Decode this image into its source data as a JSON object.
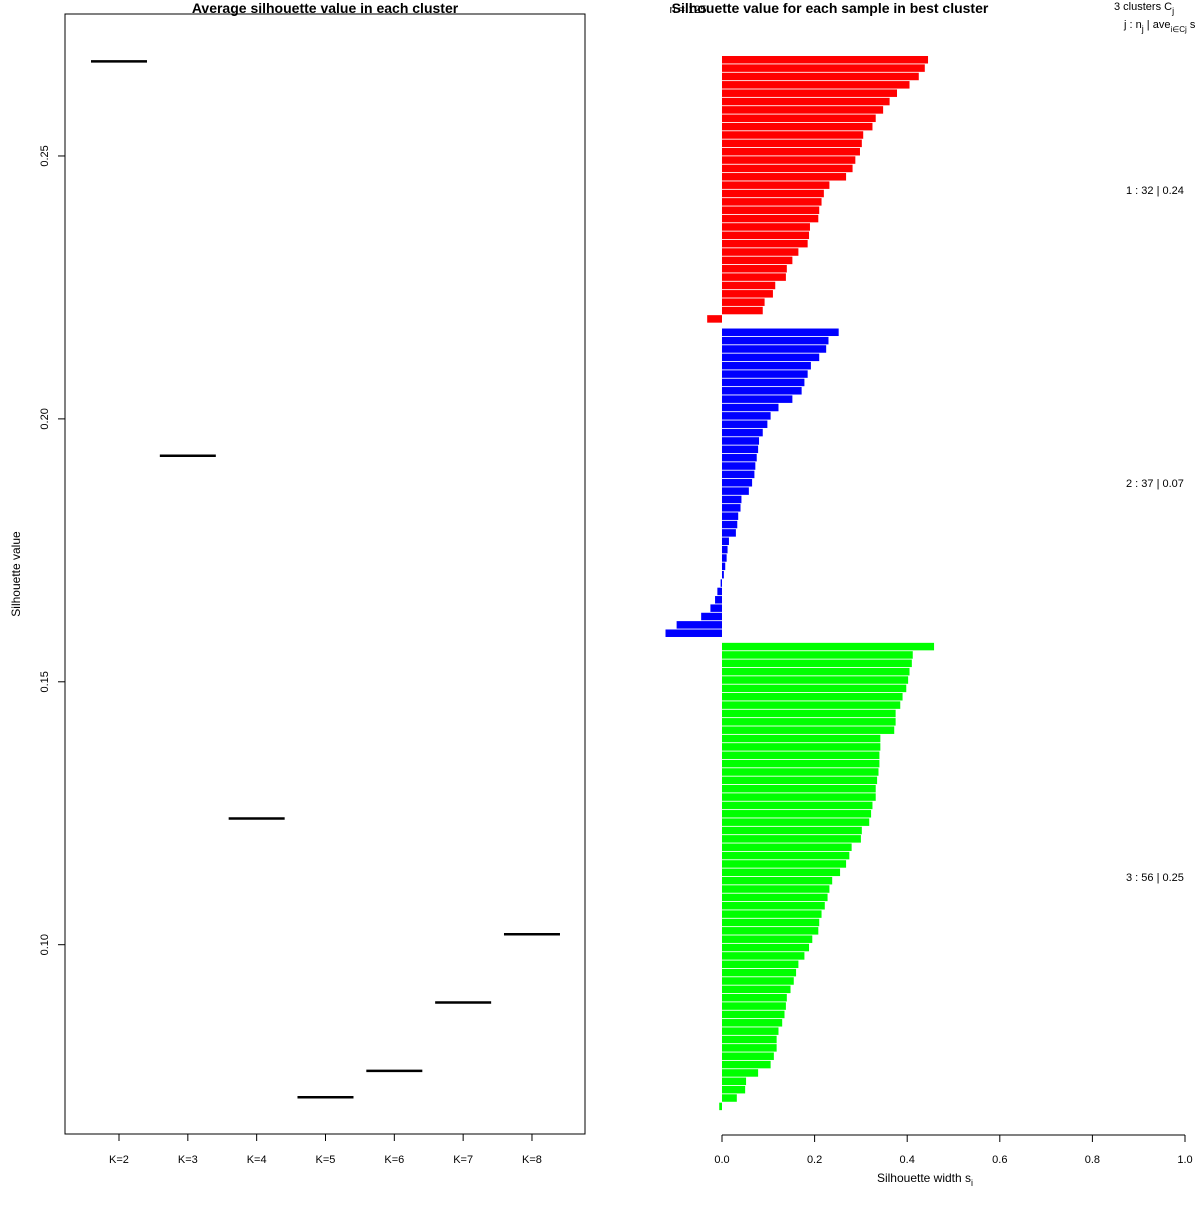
{
  "chart_data": [
    {
      "type": "line",
      "title": "Average silhouette value in each cluster",
      "xlabel": "",
      "ylabel": "Silhouette value",
      "categories": [
        "K=2",
        "K=3",
        "K=4",
        "K=5",
        "K=6",
        "K=7",
        "K=8"
      ],
      "values": [
        0.268,
        0.193,
        0.124,
        0.071,
        0.076,
        0.089,
        0.102
      ],
      "ylim": [
        0.064,
        0.277
      ],
      "yticks": [
        "0.10",
        "0.15",
        "0.20",
        "0.25"
      ],
      "line_color": "#000000",
      "grid": false
    },
    {
      "type": "bar",
      "orientation": "horizontal",
      "title": "Silhouette value for each sample in best cluster",
      "overlapped_text": "n = 125",
      "xlabel": "Silhouette width s",
      "xlabel_subscript": "i",
      "xlim": [
        0.0,
        1.0
      ],
      "xticks": [
        "0.0",
        "0.2",
        "0.4",
        "0.6",
        "0.8",
        "1.0"
      ],
      "header": {
        "line1": "3 clusters C",
        "line1_sub": "j",
        "line2": "j : n",
        "line2_sub1": "j",
        "line2_mid": " | ave",
        "line2_sub2": "i∈Cj",
        "line2_end": " s"
      },
      "clusters": [
        {
          "name": "1",
          "label": "1 :  32  |  0.24",
          "color": "#ff0000",
          "values": [
            0.445,
            0.438,
            0.425,
            0.405,
            0.378,
            0.362,
            0.348,
            0.332,
            0.325,
            0.305,
            0.302,
            0.298,
            0.288,
            0.282,
            0.268,
            0.232,
            0.22,
            0.215,
            0.21,
            0.208,
            0.19,
            0.188,
            0.185,
            0.165,
            0.152,
            0.14,
            0.138,
            0.115,
            0.11,
            0.092,
            0.088,
            -0.032
          ]
        },
        {
          "name": "2",
          "label": "2 :  37  |  0.07",
          "color": "#0000ff",
          "values": [
            0.252,
            0.23,
            0.225,
            0.21,
            0.192,
            0.185,
            0.178,
            0.172,
            0.152,
            0.122,
            0.105,
            0.098,
            0.088,
            0.08,
            0.078,
            0.075,
            0.072,
            0.07,
            0.065,
            0.058,
            0.042,
            0.04,
            0.035,
            0.033,
            0.03,
            0.015,
            0.012,
            0.01,
            0.007,
            0.004,
            -0.003,
            -0.01,
            -0.015,
            -0.025,
            -0.045,
            -0.098,
            -0.122
          ]
        },
        {
          "name": "3",
          "label": "3 :  56  |  0.25",
          "color": "#00ff00",
          "values": [
            0.458,
            0.412,
            0.41,
            0.405,
            0.402,
            0.398,
            0.39,
            0.385,
            0.375,
            0.375,
            0.372,
            0.342,
            0.342,
            0.34,
            0.34,
            0.338,
            0.335,
            0.332,
            0.332,
            0.325,
            0.322,
            0.318,
            0.302,
            0.3,
            0.28,
            0.275,
            0.268,
            0.255,
            0.238,
            0.232,
            0.228,
            0.222,
            0.215,
            0.21,
            0.208,
            0.195,
            0.188,
            0.178,
            0.165,
            0.16,
            0.155,
            0.148,
            0.14,
            0.138,
            0.135,
            0.13,
            0.122,
            0.118,
            0.118,
            0.112,
            0.105,
            0.078,
            0.052,
            0.05,
            0.032,
            -0.006
          ]
        }
      ]
    }
  ]
}
